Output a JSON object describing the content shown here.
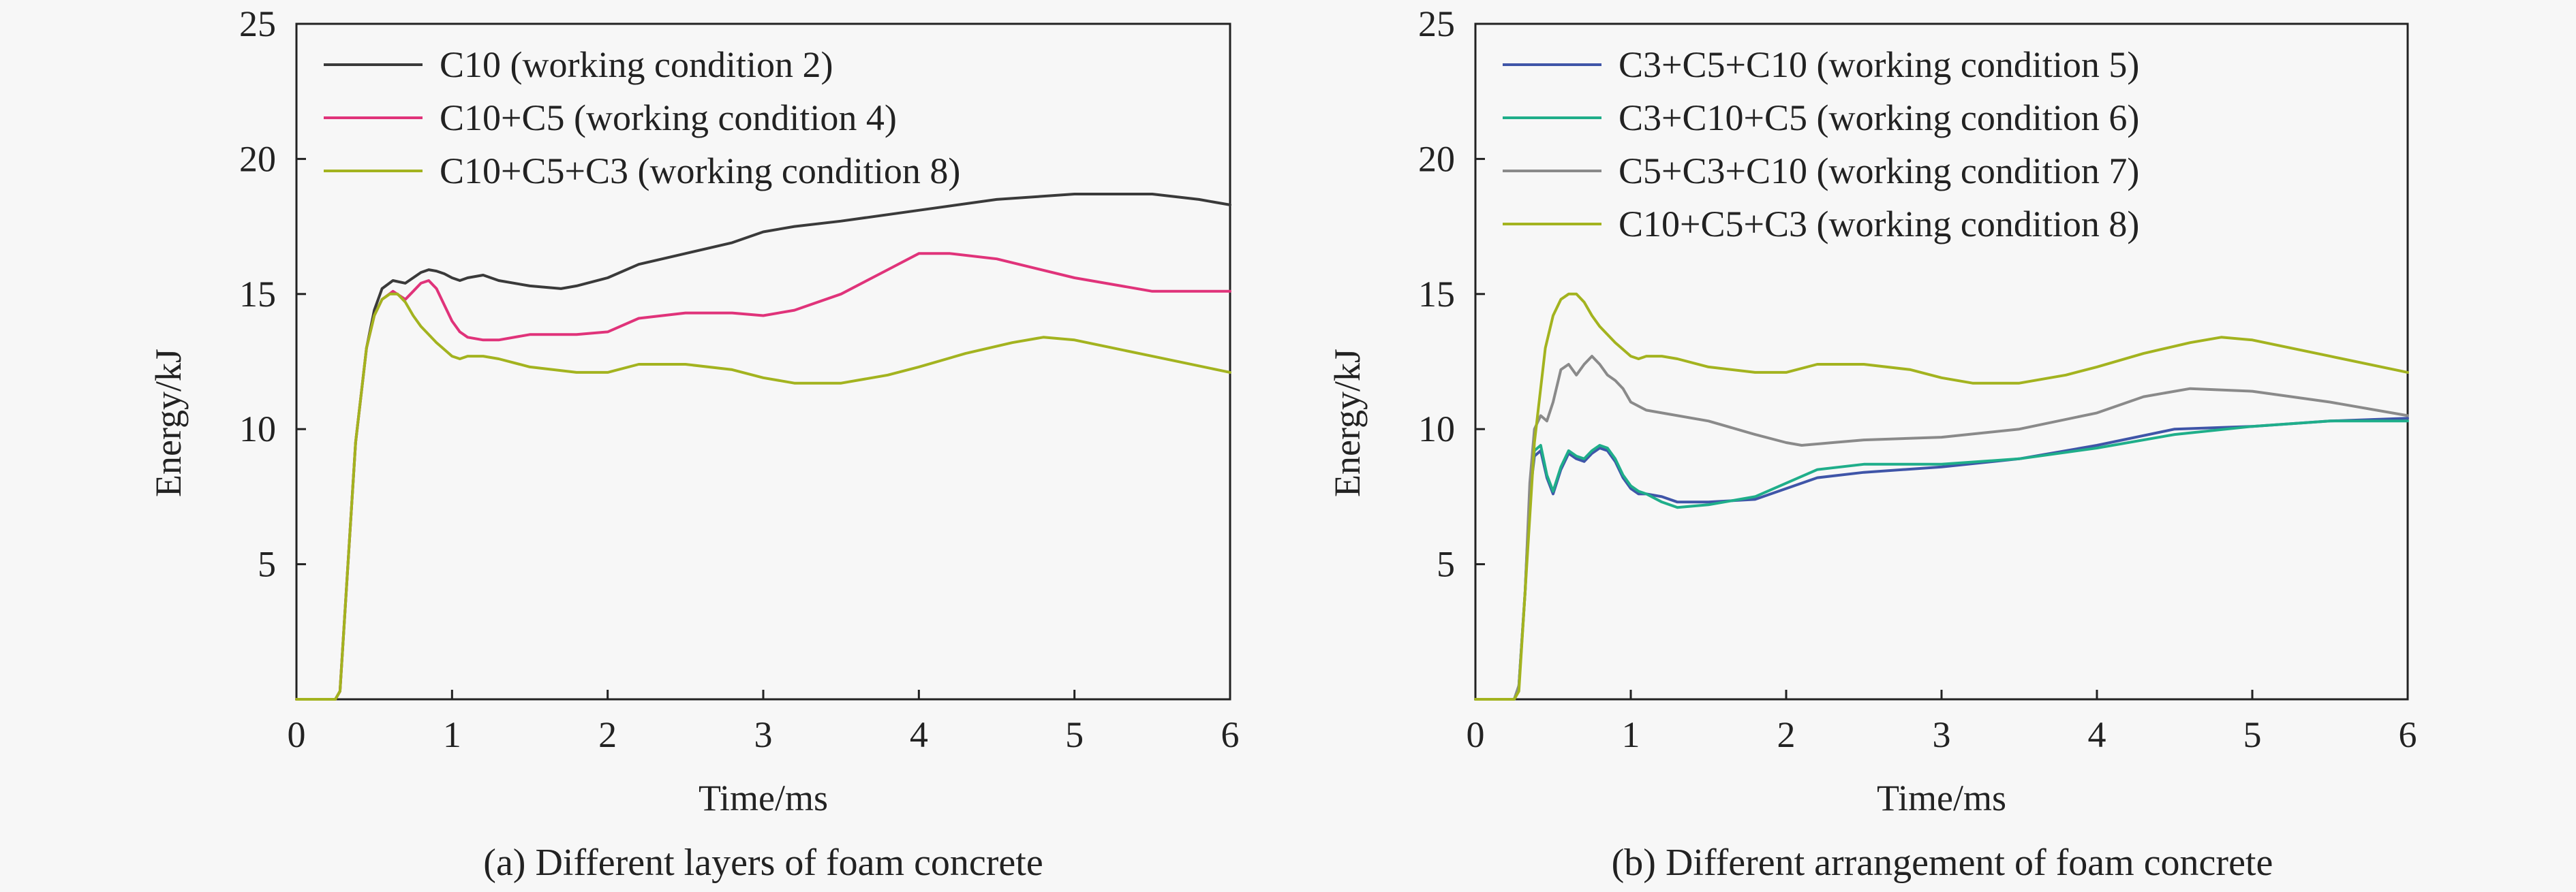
{
  "chart_data": [
    {
      "type": "line",
      "caption": "(a) Different layers of foam concrete",
      "xlabel": "Time/ms",
      "ylabel": "Energy/kJ",
      "xlim": [
        0,
        6
      ],
      "ylim": [
        0,
        25
      ],
      "xticks": [
        "0",
        "1",
        "2",
        "3",
        "4",
        "5",
        "6"
      ],
      "yticks": [
        "5",
        "10",
        "15",
        "20",
        "25"
      ],
      "legend_position": "top-left",
      "series": [
        {
          "name": "C10 (working condition 2)",
          "color": "#3a3a3a",
          "x": [
            0,
            0.25,
            0.28,
            0.32,
            0.38,
            0.45,
            0.5,
            0.55,
            0.62,
            0.7,
            0.8,
            0.85,
            0.9,
            0.95,
            1.0,
            1.05,
            1.1,
            1.2,
            1.3,
            1.5,
            1.7,
            1.8,
            2.0,
            2.2,
            2.5,
            2.8,
            3.0,
            3.2,
            3.5,
            4.0,
            4.5,
            5.0,
            5.2,
            5.5,
            5.8,
            6.0
          ],
          "y": [
            0,
            0,
            0.3,
            4,
            9.5,
            13,
            14.4,
            15.2,
            15.5,
            15.4,
            15.8,
            15.9,
            15.85,
            15.75,
            15.6,
            15.5,
            15.6,
            15.7,
            15.5,
            15.3,
            15.2,
            15.3,
            15.6,
            16.1,
            16.5,
            16.9,
            17.3,
            17.5,
            17.7,
            18.1,
            18.5,
            18.7,
            18.7,
            18.7,
            18.5,
            18.3
          ]
        },
        {
          "name": "C10+C5 (working condition 4)",
          "color": "#e0337a",
          "x": [
            0,
            0.25,
            0.28,
            0.32,
            0.38,
            0.45,
            0.5,
            0.55,
            0.62,
            0.7,
            0.75,
            0.8,
            0.85,
            0.9,
            0.95,
            1.0,
            1.05,
            1.1,
            1.2,
            1.3,
            1.5,
            1.8,
            2.0,
            2.2,
            2.5,
            2.8,
            3.0,
            3.2,
            3.5,
            3.8,
            4.0,
            4.2,
            4.5,
            5.0,
            5.5,
            6.0
          ],
          "y": [
            0,
            0,
            0.3,
            4,
            9.5,
            13,
            14.2,
            14.8,
            15.1,
            14.8,
            15.1,
            15.4,
            15.5,
            15.2,
            14.6,
            14.0,
            13.6,
            13.4,
            13.3,
            13.3,
            13.5,
            13.5,
            13.6,
            14.1,
            14.3,
            14.3,
            14.2,
            14.4,
            15.0,
            15.9,
            16.5,
            16.5,
            16.3,
            15.6,
            15.1,
            15.1
          ]
        },
        {
          "name": "C10+C5+C3 (working condition 8)",
          "color": "#a3b31f",
          "x": [
            0,
            0.25,
            0.28,
            0.32,
            0.38,
            0.45,
            0.5,
            0.55,
            0.6,
            0.65,
            0.7,
            0.75,
            0.8,
            0.9,
            1.0,
            1.05,
            1.1,
            1.2,
            1.3,
            1.5,
            1.8,
            2.0,
            2.2,
            2.5,
            2.8,
            3.0,
            3.2,
            3.5,
            3.8,
            4.0,
            4.3,
            4.6,
            4.8,
            5.0,
            5.5,
            6.0
          ],
          "y": [
            0,
            0,
            0.3,
            4,
            9.5,
            13,
            14.2,
            14.8,
            15.0,
            15.0,
            14.7,
            14.2,
            13.8,
            13.2,
            12.7,
            12.6,
            12.7,
            12.7,
            12.6,
            12.3,
            12.1,
            12.1,
            12.4,
            12.4,
            12.2,
            11.9,
            11.7,
            11.7,
            12.0,
            12.3,
            12.8,
            13.2,
            13.4,
            13.3,
            12.7,
            12.1
          ]
        }
      ]
    },
    {
      "type": "line",
      "caption": "(b) Different arrangement of foam concrete",
      "xlabel": "Time/ms",
      "ylabel": "Energy/kJ",
      "xlim": [
        0,
        6
      ],
      "ylim": [
        0,
        25
      ],
      "xticks": [
        "0",
        "1",
        "2",
        "3",
        "4",
        "5",
        "6"
      ],
      "yticks": [
        "5",
        "10",
        "15",
        "20",
        "25"
      ],
      "legend_position": "top-left",
      "series": [
        {
          "name": "C3+C5+C10 (working condition 5)",
          "color": "#3f55a8",
          "x": [
            0,
            0.25,
            0.28,
            0.32,
            0.35,
            0.38,
            0.42,
            0.46,
            0.5,
            0.55,
            0.6,
            0.65,
            0.7,
            0.75,
            0.8,
            0.85,
            0.9,
            0.95,
            1.0,
            1.05,
            1.1,
            1.2,
            1.3,
            1.5,
            1.8,
            2.0,
            2.2,
            2.5,
            3.0,
            3.5,
            4.0,
            4.5,
            5.0,
            5.5,
            6.0
          ],
          "y": [
            0,
            0,
            0.5,
            4,
            7.5,
            9.0,
            9.2,
            8.2,
            7.6,
            8.5,
            9.1,
            8.9,
            8.8,
            9.1,
            9.3,
            9.2,
            8.8,
            8.2,
            7.8,
            7.6,
            7.6,
            7.5,
            7.3,
            7.3,
            7.4,
            7.8,
            8.2,
            8.4,
            8.6,
            8.9,
            9.4,
            10.0,
            10.1,
            10.3,
            10.4
          ]
        },
        {
          "name": "C3+C10+C5 (working condition 6)",
          "color": "#1fae8a",
          "x": [
            0,
            0.25,
            0.28,
            0.32,
            0.35,
            0.38,
            0.42,
            0.46,
            0.5,
            0.55,
            0.6,
            0.65,
            0.7,
            0.75,
            0.8,
            0.85,
            0.9,
            0.95,
            1.0,
            1.05,
            1.1,
            1.2,
            1.3,
            1.5,
            1.8,
            2.0,
            2.2,
            2.5,
            3.0,
            3.5,
            4.0,
            4.5,
            5.0,
            5.5,
            6.0
          ],
          "y": [
            0,
            0,
            0.5,
            4,
            7.7,
            9.2,
            9.4,
            8.3,
            7.7,
            8.6,
            9.2,
            9.0,
            8.9,
            9.2,
            9.4,
            9.3,
            8.9,
            8.3,
            7.9,
            7.7,
            7.6,
            7.3,
            7.1,
            7.2,
            7.5,
            8.0,
            8.5,
            8.7,
            8.7,
            8.9,
            9.3,
            9.8,
            10.1,
            10.3,
            10.3
          ]
        },
        {
          "name": "C5+C3+C10 (working condition 7)",
          "color": "#8a8a8a",
          "x": [
            0,
            0.25,
            0.28,
            0.32,
            0.35,
            0.38,
            0.42,
            0.46,
            0.5,
            0.55,
            0.6,
            0.65,
            0.7,
            0.75,
            0.8,
            0.85,
            0.9,
            0.95,
            1.0,
            1.1,
            1.2,
            1.5,
            1.8,
            2.0,
            2.1,
            2.3,
            2.5,
            3.0,
            3.5,
            4.0,
            4.3,
            4.6,
            5.0,
            5.5,
            6.0
          ],
          "y": [
            0,
            0,
            0.5,
            4,
            8,
            10.0,
            10.5,
            10.3,
            11.0,
            12.2,
            12.4,
            12.0,
            12.4,
            12.7,
            12.4,
            12.0,
            11.8,
            11.5,
            11.0,
            10.7,
            10.6,
            10.3,
            9.8,
            9.5,
            9.4,
            9.5,
            9.6,
            9.7,
            10.0,
            10.6,
            11.2,
            11.5,
            11.4,
            11.0,
            10.5
          ]
        },
        {
          "name": "C10+C5+C3 (working condition 8)",
          "color": "#a3b31f",
          "x": [
            0,
            0.25,
            0.28,
            0.32,
            0.38,
            0.45,
            0.5,
            0.55,
            0.6,
            0.65,
            0.7,
            0.75,
            0.8,
            0.9,
            1.0,
            1.05,
            1.1,
            1.2,
            1.3,
            1.5,
            1.8,
            2.0,
            2.2,
            2.5,
            2.8,
            3.0,
            3.2,
            3.5,
            3.8,
            4.0,
            4.3,
            4.6,
            4.8,
            5.0,
            5.5,
            6.0
          ],
          "y": [
            0,
            0,
            0.3,
            4,
            9.5,
            13,
            14.2,
            14.8,
            15.0,
            15.0,
            14.7,
            14.2,
            13.8,
            13.2,
            12.7,
            12.6,
            12.7,
            12.7,
            12.6,
            12.3,
            12.1,
            12.1,
            12.4,
            12.4,
            12.2,
            11.9,
            11.7,
            11.7,
            12.0,
            12.3,
            12.8,
            13.2,
            13.4,
            13.3,
            12.7,
            12.1
          ]
        }
      ]
    }
  ]
}
